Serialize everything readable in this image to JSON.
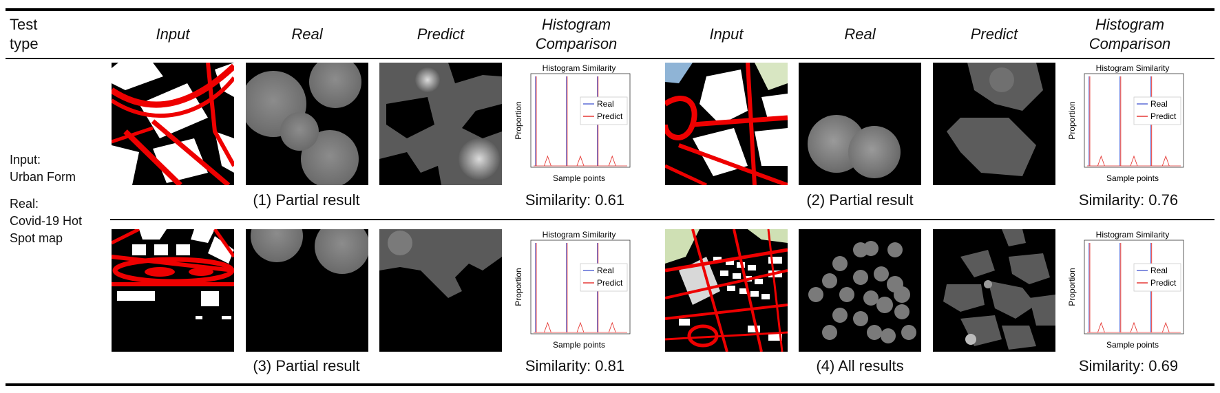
{
  "header": {
    "test_type": "Test type",
    "input": "Input",
    "real": "Real",
    "predict": "Predict",
    "histogram": "Histogram Comparison"
  },
  "side_label": {
    "input_label": "Input:",
    "input_value": "Urban Form",
    "real_label": "Real:",
    "real_line1": "Covid-19 Hot",
    "real_line2": "Spot map"
  },
  "histogram": {
    "title": "Histogram Similarity",
    "xlabel": "Sample points",
    "ylabel": "Proportion",
    "legend_real": "Real",
    "legend_predict": "Predict",
    "color_real": "#5b6bd6",
    "color_predict": "#e53935"
  },
  "results": [
    {
      "caption": "(1) Partial result",
      "similarity": "Similarity: 0.61"
    },
    {
      "caption": "(2) Partial result",
      "similarity": "Similarity: 0.76"
    },
    {
      "caption": "(3) Partial result",
      "similarity": "Similarity: 0.81"
    },
    {
      "caption": "(4) All results",
      "similarity": "Similarity: 0.69"
    }
  ]
}
